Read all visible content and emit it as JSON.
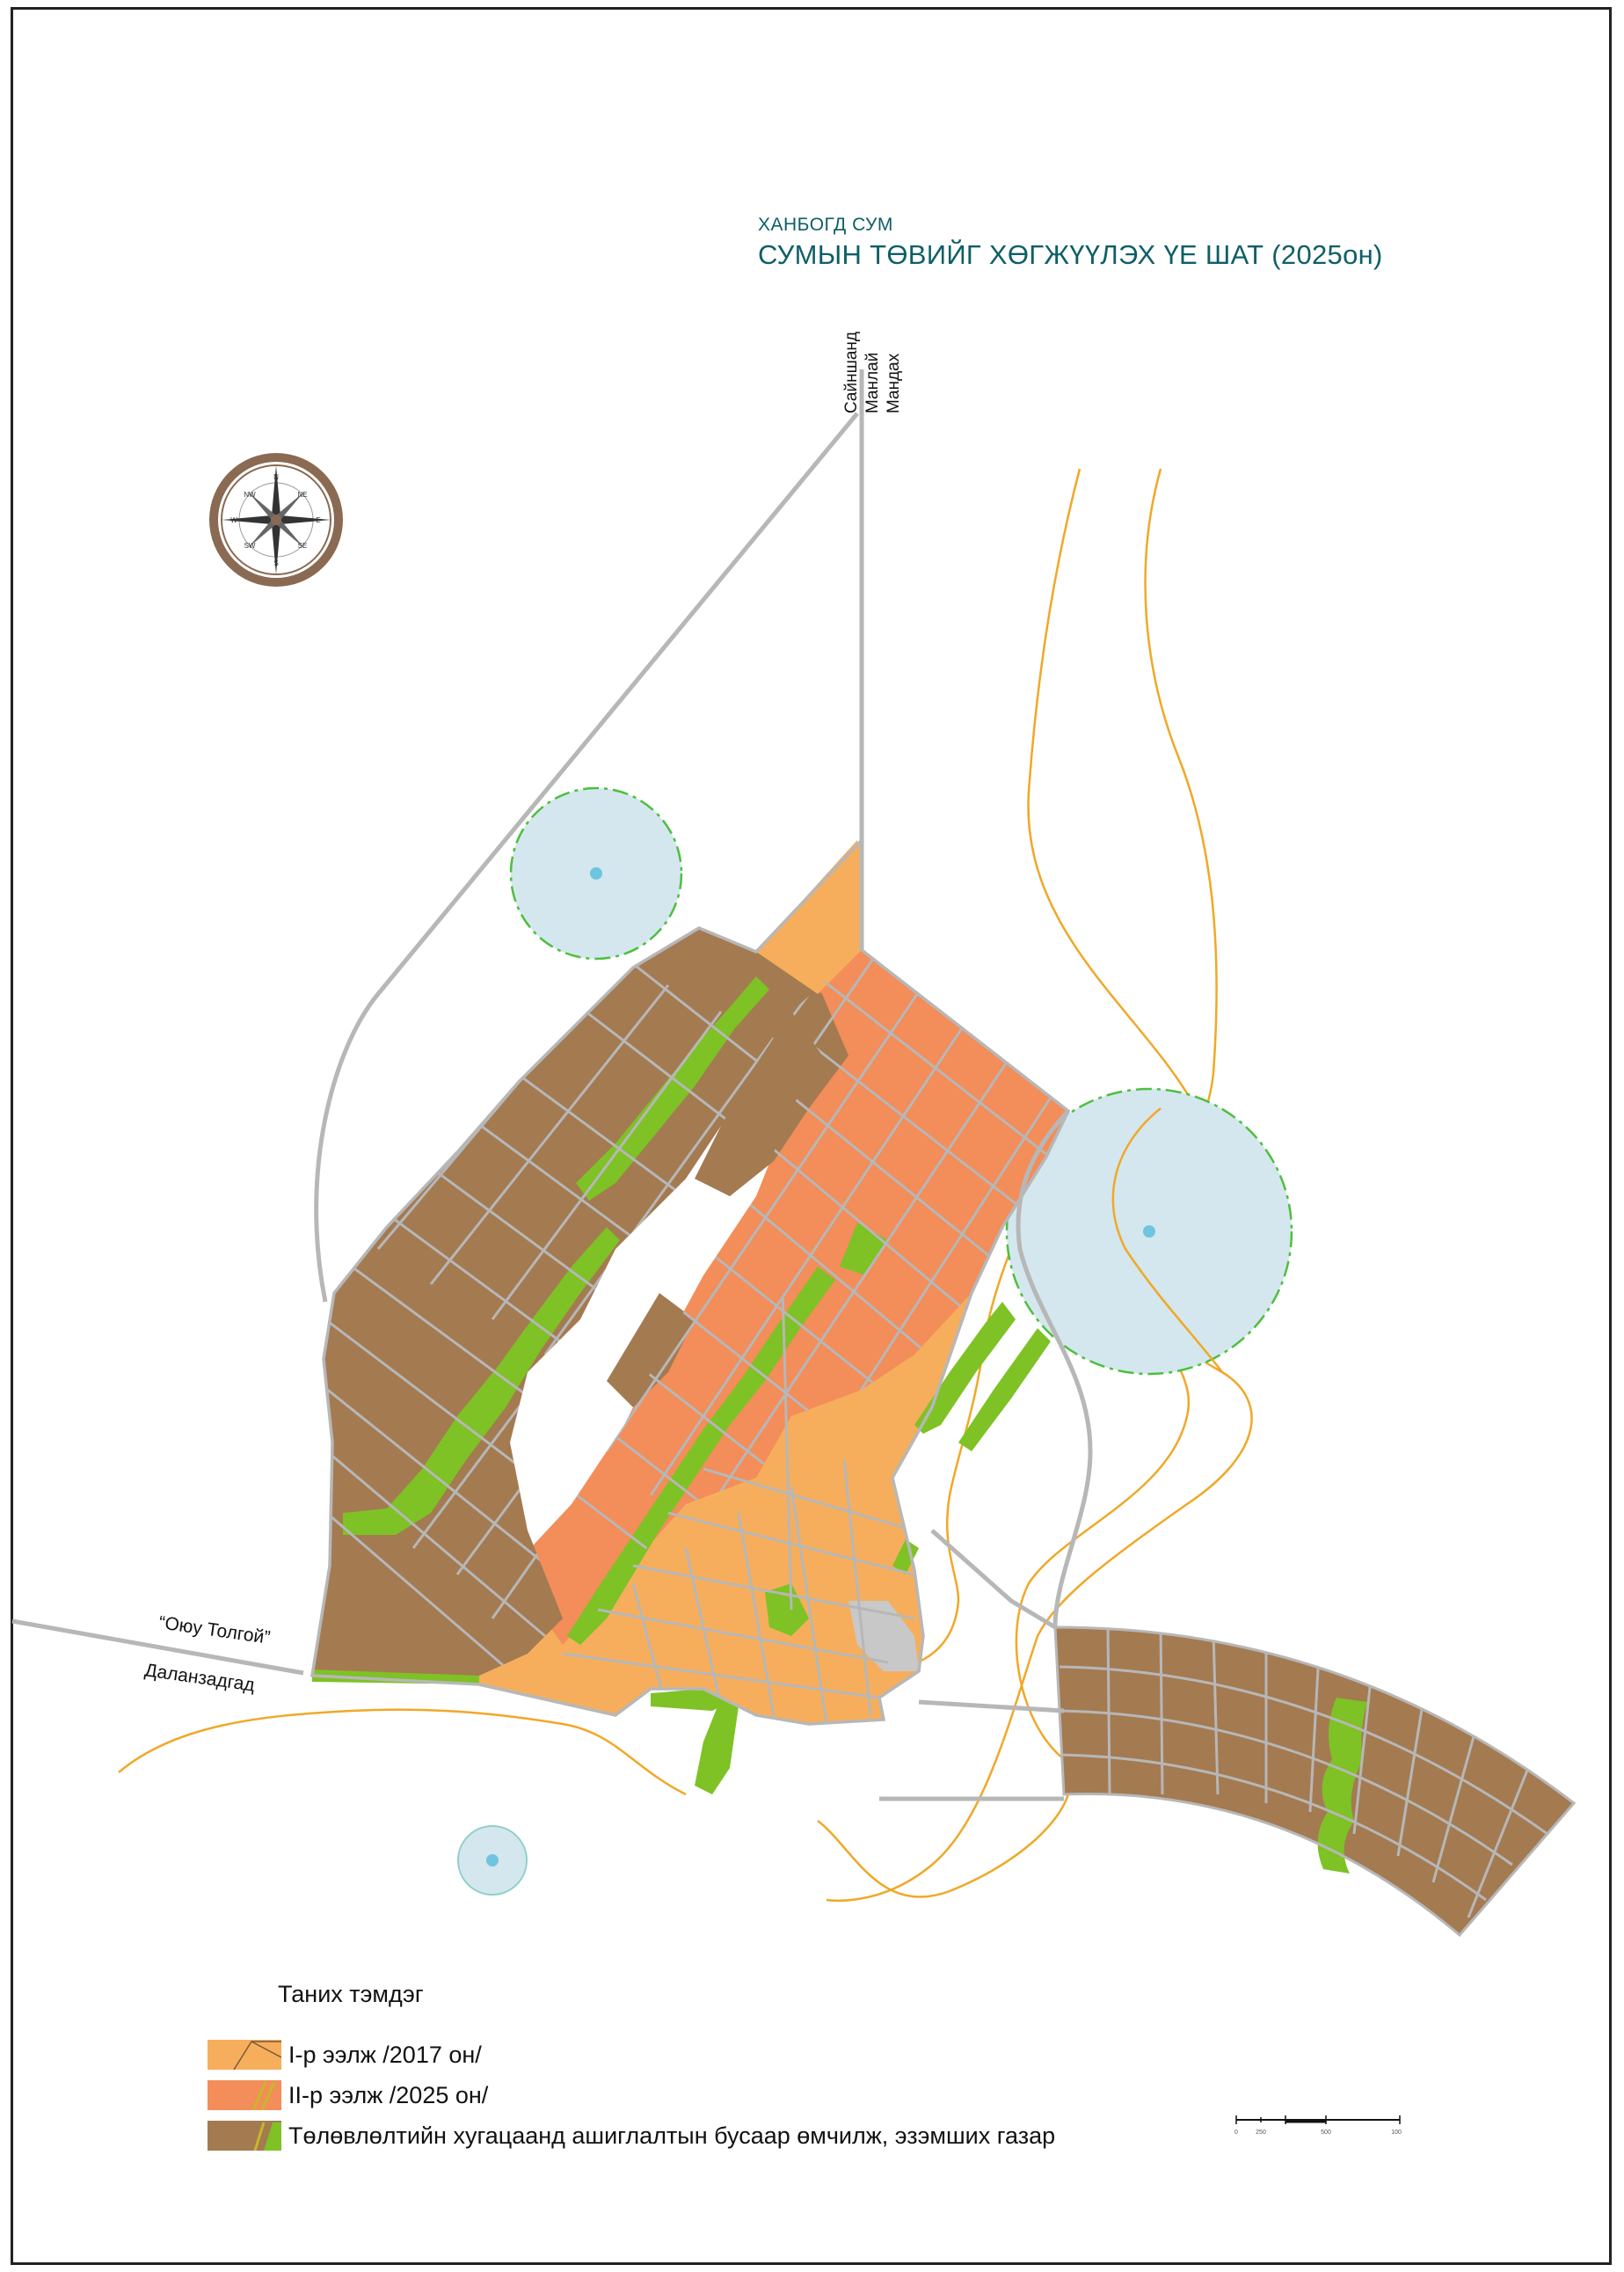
{
  "header": {
    "subtitle": "ХАНБОГД СУМ",
    "title": "СУМЫН ТӨВИЙГ ХӨГЖҮҮЛЭХ ҮЕ ШАТ (2025он)"
  },
  "road_labels": {
    "north": [
      "Сайншанд",
      "Манлай",
      "Мандах"
    ],
    "west_upper": "“Оюу Толгой”",
    "west_lower": "Даланзадгад"
  },
  "compass": {
    "directions": [
      "N",
      "NE",
      "E",
      "SE",
      "S",
      "SW",
      "W",
      "NW"
    ]
  },
  "legend": {
    "title": "Таних тэмдэг",
    "items": [
      {
        "label": "I-р ээлж /2017 он/",
        "color": "#f6ae5c"
      },
      {
        "label": "II-р ээлж /2025 он/",
        "color": "#f38d59"
      },
      {
        "label": "Төлөвлөлтийн хугацаанд ашиглалтын бусаар өмчилж, эзэмших газар",
        "color": "#a47a51"
      }
    ]
  },
  "scale_bar": {
    "ticks": [
      "0",
      "250",
      "500",
      "1000"
    ]
  },
  "colors": {
    "phase1": "#f6ae5c",
    "phase2": "#f38d59",
    "reserved": "#a47a51",
    "green_space": "#7ec225",
    "roads": "#b7b7b7",
    "rivers": "#f0a828",
    "protection_zone": "#d4e7ee",
    "protection_edge": "#4ebf3e",
    "title_color": "#0d5f66"
  }
}
